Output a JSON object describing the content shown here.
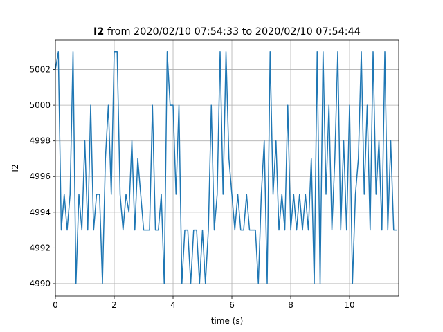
{
  "chart_data": {
    "type": "line",
    "title": {
      "bold": "I2",
      "rest": "from 2020/02/10 07:54:33 to 2020/02/10 07:54:44"
    },
    "xlabel": "time (s)",
    "ylabel": "I2",
    "xlim": [
      0,
      11.67
    ],
    "ylim": [
      4989.3,
      5003.65
    ],
    "xticks": [
      0,
      2,
      4,
      6,
      8,
      10
    ],
    "yticks": [
      4990,
      4992,
      4994,
      4996,
      4998,
      5000,
      5002
    ],
    "grid": true,
    "x": [
      0.0,
      0.1,
      0.2,
      0.3,
      0.4,
      0.5,
      0.6,
      0.7,
      0.8,
      0.9,
      1.0,
      1.1,
      1.2,
      1.3,
      1.4,
      1.5,
      1.6,
      1.7,
      1.8,
      1.9,
      2.0,
      2.1,
      2.2,
      2.3,
      2.4,
      2.5,
      2.6,
      2.7,
      2.8,
      2.9,
      3.0,
      3.1,
      3.2,
      3.3,
      3.4,
      3.5,
      3.6,
      3.7,
      3.8,
      3.9,
      4.0,
      4.1,
      4.2,
      4.3,
      4.4,
      4.5,
      4.6,
      4.7,
      4.8,
      4.9,
      5.0,
      5.1,
      5.2,
      5.3,
      5.4,
      5.5,
      5.6,
      5.7,
      5.8,
      5.9,
      6.0,
      6.1,
      6.2,
      6.3,
      6.4,
      6.5,
      6.6,
      6.7,
      6.8,
      6.9,
      7.0,
      7.1,
      7.2,
      7.3,
      7.4,
      7.5,
      7.6,
      7.7,
      7.8,
      7.9,
      8.0,
      8.1,
      8.2,
      8.3,
      8.4,
      8.5,
      8.6,
      8.7,
      8.8,
      8.9,
      9.0,
      9.1,
      9.2,
      9.3,
      9.4,
      9.5,
      9.6,
      9.7,
      9.8,
      9.9,
      10.0,
      10.1,
      10.2,
      10.3,
      10.4,
      10.5,
      10.6,
      10.7,
      10.8,
      10.9,
      11.0,
      11.1,
      11.2,
      11.3,
      11.4,
      11.5,
      11.6
    ],
    "series": [
      {
        "color": "#1f77b4",
        "values": [
          5002,
          5003,
          4993,
          4995,
          4993,
          4995,
          5003,
          4990,
          4995,
          4993,
          4998,
          4993,
          5000,
          4993,
          4995,
          4995,
          4990,
          4997,
          5000,
          4995,
          5003,
          5003,
          4995,
          4993,
          4995,
          4994,
          4998,
          4993,
          4997,
          4995,
          4993,
          4993,
          4993,
          5000,
          4993,
          4993,
          4995,
          4990,
          5003,
          5000,
          5000,
          4995,
          5000,
          4990,
          4993,
          4993,
          4990,
          4993,
          4993,
          4990,
          4993,
          4990,
          4993,
          5000,
          4993,
          4995,
          5003,
          4995,
          5003,
          4997,
          4995,
          4993,
          4995,
          4993,
          4993,
          4995,
          4993,
          4993,
          4993,
          4990,
          4995,
          4998,
          4990,
          5003,
          4995,
          4998,
          4993,
          4995,
          4993,
          5000,
          4993,
          4995,
          4993,
          4995,
          4993,
          4995,
          4993,
          4997,
          4990,
          5003,
          4990,
          5003,
          4995,
          5000,
          4993,
          4997,
          5003,
          4993,
          4998,
          4993,
          5000,
          4990,
          4995,
          4997,
          5003,
          4995,
          5000,
          4993,
          5003,
          4995,
          4998,
          4993,
          5003,
          4993,
          4998,
          4993,
          4993
        ]
      }
    ]
  }
}
